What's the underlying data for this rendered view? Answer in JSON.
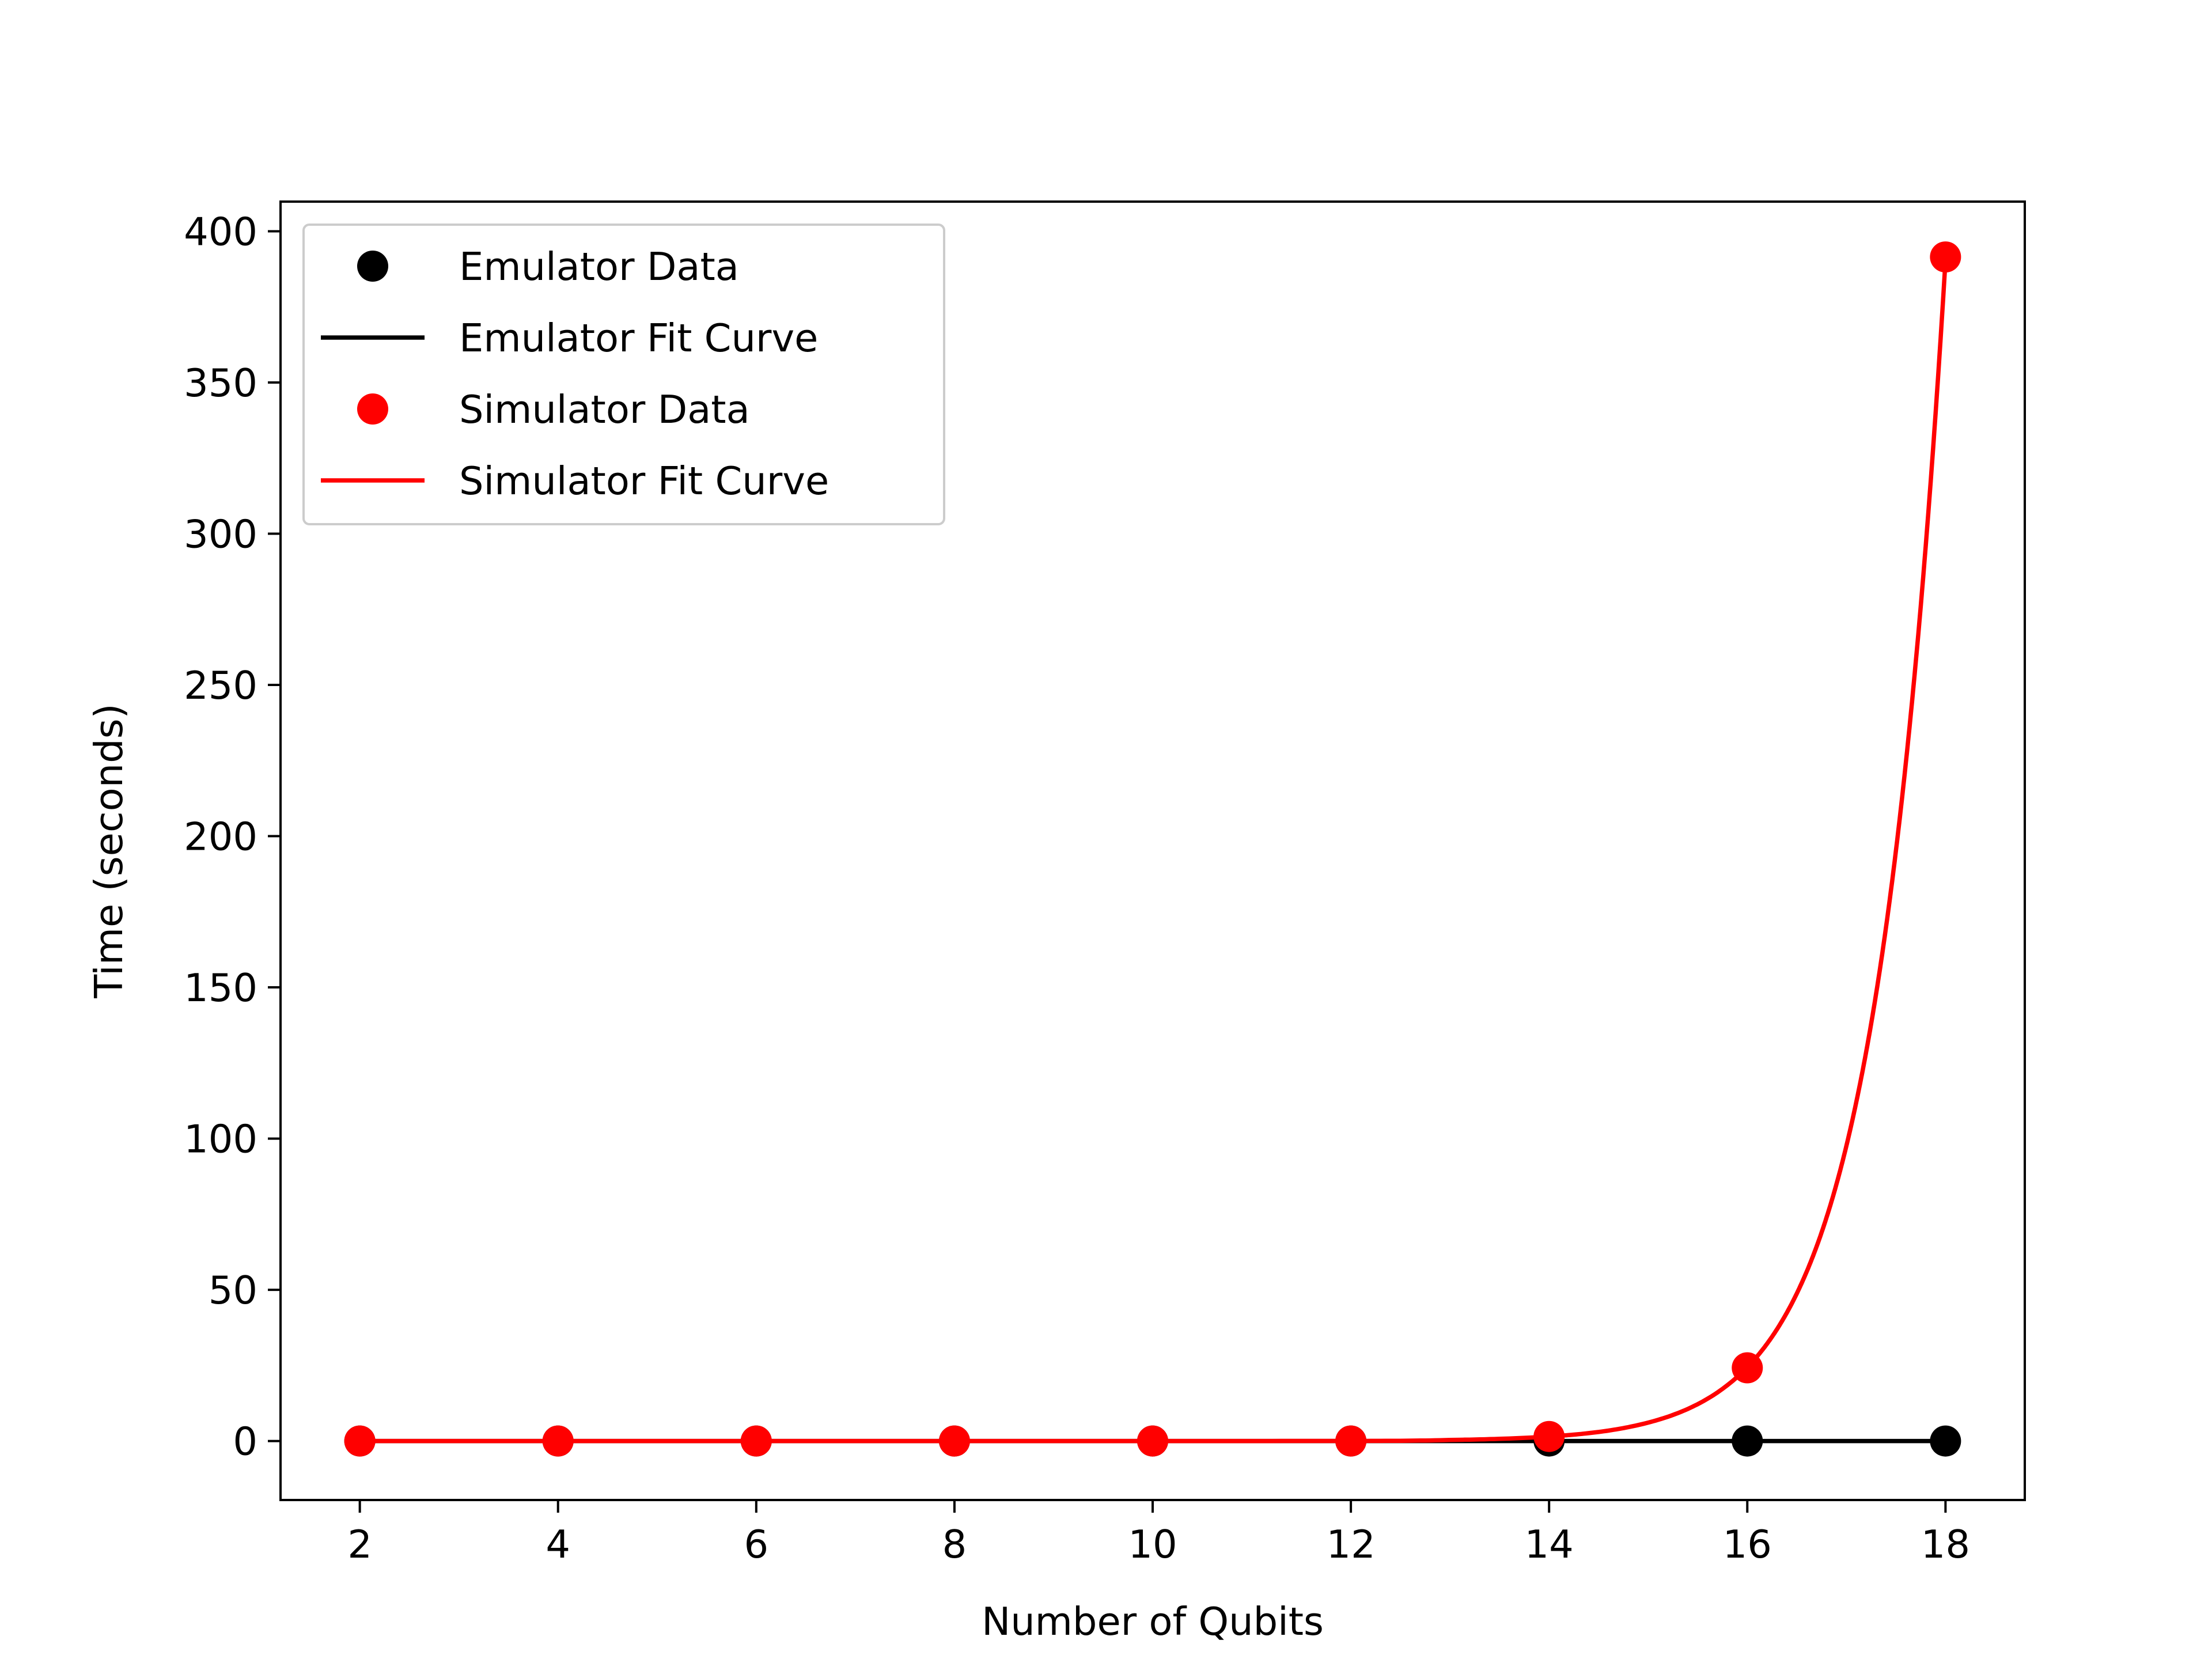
{
  "chart_data": {
    "type": "line",
    "title": "",
    "xlabel": "Number of Qubits",
    "ylabel": "Time (seconds)",
    "xlim": [
      1.2,
      18.8
    ],
    "ylim": [
      -19.5,
      409.8
    ],
    "x_ticks": [
      2,
      4,
      6,
      8,
      10,
      12,
      14,
      16,
      18
    ],
    "y_ticks": [
      0,
      50,
      100,
      150,
      200,
      250,
      300,
      350,
      400
    ],
    "grid": false,
    "legend_position": "top-left",
    "series": [
      {
        "name": "Emulator Data",
        "kind": "markers",
        "color": "#000000",
        "x": [
          2,
          4,
          6,
          8,
          10,
          12,
          14,
          16,
          18
        ],
        "y": [
          0,
          0,
          0,
          0,
          0,
          0,
          0,
          0,
          0
        ]
      },
      {
        "name": "Emulator Fit Curve",
        "kind": "line",
        "color": "#000000",
        "x": [
          2,
          4,
          6,
          8,
          10,
          12,
          14,
          16,
          18
        ],
        "y": [
          0,
          0,
          0,
          0,
          0,
          0,
          0,
          0,
          0
        ]
      },
      {
        "name": "Simulator Data",
        "kind": "markers",
        "color": "#ff0000",
        "x": [
          2,
          4,
          6,
          8,
          10,
          12,
          14,
          16,
          18
        ],
        "y": [
          0,
          0,
          0,
          0,
          0,
          0,
          1.5,
          24.2,
          391.5
        ]
      },
      {
        "name": "Simulator Fit Curve",
        "kind": "line",
        "color": "#ff0000",
        "x": [
          2,
          4,
          6,
          8,
          10,
          12,
          13,
          14,
          14.5,
          15,
          15.5,
          16,
          16.25,
          16.5,
          16.75,
          17,
          17.25,
          17.5,
          17.75,
          18
        ],
        "y": [
          0,
          0,
          0,
          0,
          0,
          0.02,
          0.35,
          1.5,
          3.0,
          6.1,
          12.2,
          24.4,
          34.5,
          48.8,
          69.0,
          97.6,
          138.0,
          195.2,
          276.0,
          390.4
        ]
      }
    ]
  }
}
